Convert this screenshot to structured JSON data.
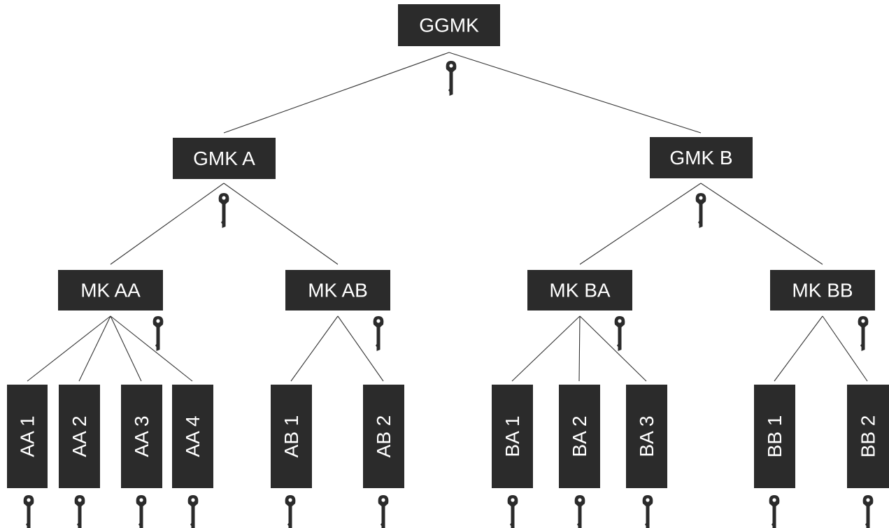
{
  "title": "",
  "colors": {
    "box_fill": "#2b2b2b",
    "box_text": "#ffffff",
    "connector": "#333333",
    "key": "#2b2b2b"
  },
  "icons": {
    "key": "key-icon"
  },
  "nodes": [
    {
      "id": "ggmk",
      "label": "GGMK",
      "level": "grand-grand-master"
    },
    {
      "id": "gmk-a",
      "label": "GMK A",
      "level": "grand-master",
      "parent": "ggmk"
    },
    {
      "id": "gmk-b",
      "label": "GMK B",
      "level": "grand-master",
      "parent": "ggmk"
    },
    {
      "id": "mk-aa",
      "label": "MK AA",
      "level": "master",
      "parent": "gmk-a"
    },
    {
      "id": "mk-ab",
      "label": "MK AB",
      "level": "master",
      "parent": "gmk-a"
    },
    {
      "id": "mk-ba",
      "label": "MK BA",
      "level": "master",
      "parent": "gmk-b"
    },
    {
      "id": "mk-bb",
      "label": "MK BB",
      "level": "master",
      "parent": "gmk-b"
    },
    {
      "id": "aa-1",
      "label": "AA 1",
      "level": "change",
      "parent": "mk-aa"
    },
    {
      "id": "aa-2",
      "label": "AA 2",
      "level": "change",
      "parent": "mk-aa"
    },
    {
      "id": "aa-3",
      "label": "AA 3",
      "level": "change",
      "parent": "mk-aa"
    },
    {
      "id": "aa-4",
      "label": "AA 4",
      "level": "change",
      "parent": "mk-aa"
    },
    {
      "id": "ab-1",
      "label": "AB 1",
      "level": "change",
      "parent": "mk-ab"
    },
    {
      "id": "ab-2",
      "label": "AB 2",
      "level": "change",
      "parent": "mk-ab"
    },
    {
      "id": "ba-1",
      "label": "BA 1",
      "level": "change",
      "parent": "mk-ba"
    },
    {
      "id": "ba-2",
      "label": "BA 2",
      "level": "change",
      "parent": "mk-ba"
    },
    {
      "id": "ba-3",
      "label": "BA 3",
      "level": "change",
      "parent": "mk-ba"
    },
    {
      "id": "bb-1",
      "label": "BB 1",
      "level": "change",
      "parent": "mk-bb"
    },
    {
      "id": "bb-2",
      "label": "BB 2",
      "level": "change",
      "parent": "mk-bb"
    }
  ]
}
